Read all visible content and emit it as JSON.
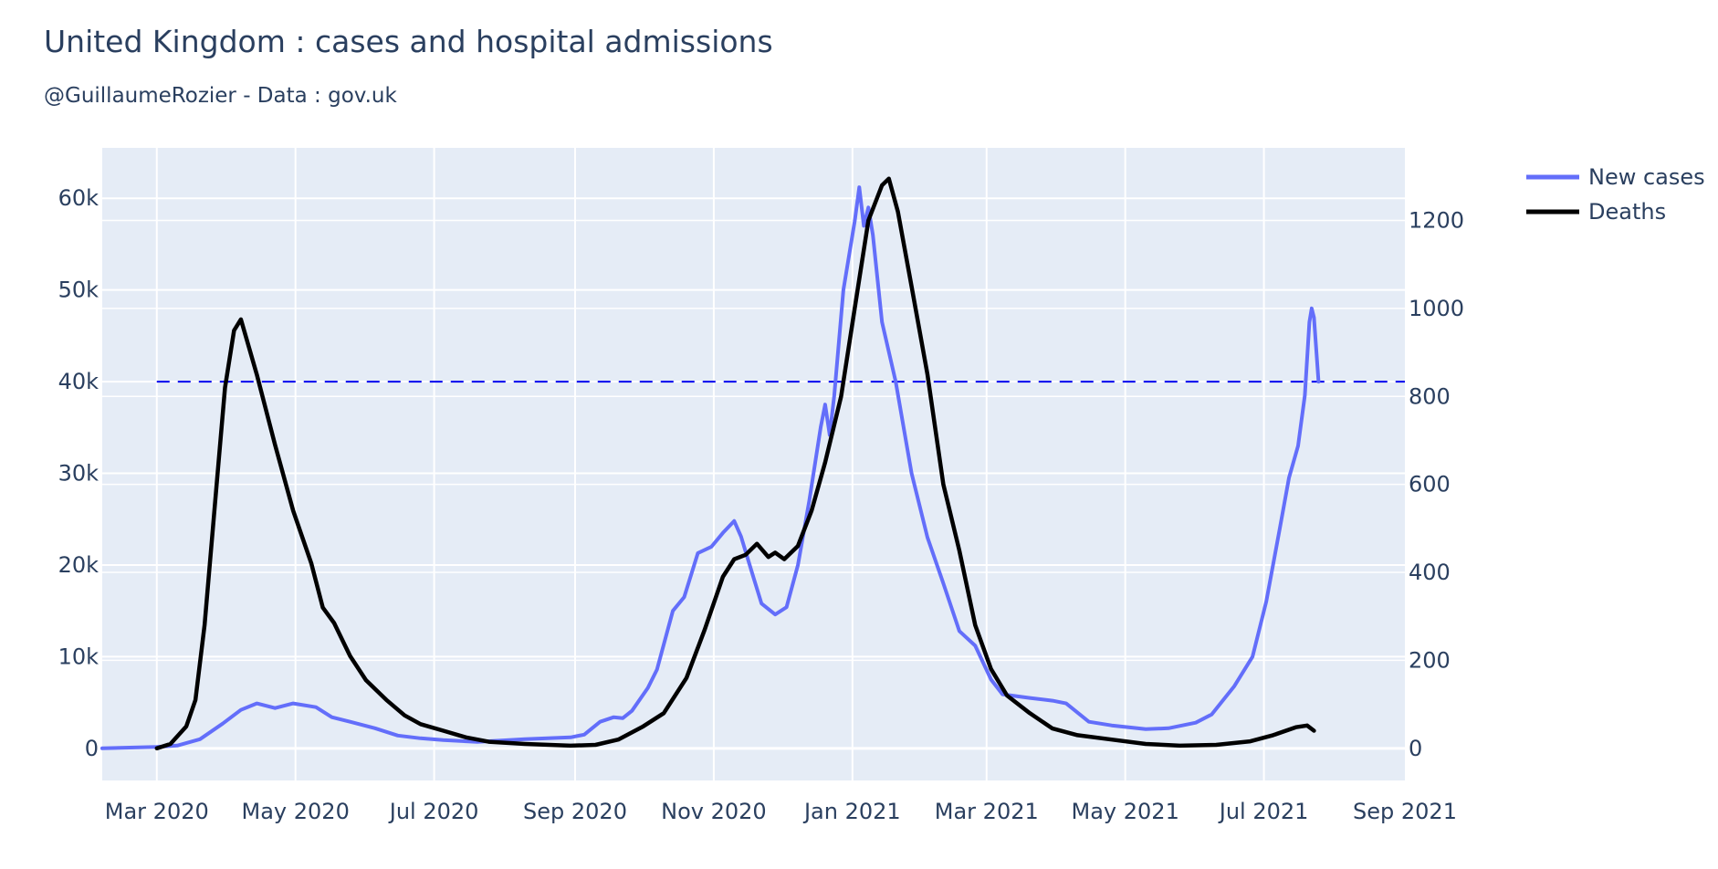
{
  "chart_data": {
    "type": "line",
    "title": "United Kingdom : cases and hospital admissions",
    "subtitle": "@GuillaumeRozier - Data : gov.uk",
    "x_ticks": [
      {
        "date": "2020-03-01",
        "label": "Mar 2020"
      },
      {
        "date": "2020-05-01",
        "label": "May 2020"
      },
      {
        "date": "2020-07-01",
        "label": "Jul 2020"
      },
      {
        "date": "2020-09-01",
        "label": "Sep 2020"
      },
      {
        "date": "2020-11-01",
        "label": "Nov 2020"
      },
      {
        "date": "2021-01-01",
        "label": "Jan 2021"
      },
      {
        "date": "2021-03-01",
        "label": "Mar 2021"
      },
      {
        "date": "2021-05-01",
        "label": "May 2021"
      },
      {
        "date": "2021-07-01",
        "label": "Jul 2021"
      },
      {
        "date": "2021-09-01",
        "label": "Sep 2021"
      }
    ],
    "x_range": [
      "2020-02-06",
      "2021-09-01"
    ],
    "y_left": {
      "range": [
        -3500,
        65500
      ],
      "ticks": [
        {
          "value": 0,
          "label": "0"
        },
        {
          "value": 10000,
          "label": "10k"
        },
        {
          "value": 20000,
          "label": "20k"
        },
        {
          "value": 30000,
          "label": "30k"
        },
        {
          "value": 40000,
          "label": "40k"
        },
        {
          "value": 50000,
          "label": "50k"
        },
        {
          "value": 60000,
          "label": "60k"
        }
      ]
    },
    "y_right": {
      "range": [
        -73,
        1365
      ],
      "ticks": [
        {
          "value": 0,
          "label": "0"
        },
        {
          "value": 200,
          "label": "200"
        },
        {
          "value": 400,
          "label": "400"
        },
        {
          "value": 600,
          "label": "600"
        },
        {
          "value": 800,
          "label": "800"
        },
        {
          "value": 1000,
          "label": "1000"
        },
        {
          "value": 1200,
          "label": "1200"
        }
      ]
    },
    "reference_line": {
      "axis": "left",
      "value": 40000,
      "style": "dashed",
      "from": "2020-03-01",
      "to": "2021-09-01"
    },
    "series": [
      {
        "name": "New cases",
        "axis": "left",
        "color": "#636efa",
        "points": [
          [
            "2020-02-06",
            0
          ],
          [
            "2020-03-01",
            150
          ],
          [
            "2020-03-10",
            300
          ],
          [
            "2020-03-20",
            1000
          ],
          [
            "2020-03-30",
            2700
          ],
          [
            "2020-04-07",
            4200
          ],
          [
            "2020-04-14",
            4900
          ],
          [
            "2020-04-22",
            4400
          ],
          [
            "2020-04-30",
            4900
          ],
          [
            "2020-05-10",
            4500
          ],
          [
            "2020-05-17",
            3400
          ],
          [
            "2020-05-25",
            2900
          ],
          [
            "2020-06-05",
            2200
          ],
          [
            "2020-06-15",
            1400
          ],
          [
            "2020-06-25",
            1100
          ],
          [
            "2020-07-05",
            900
          ],
          [
            "2020-07-20",
            700
          ],
          [
            "2020-08-10",
            1000
          ],
          [
            "2020-08-30",
            1200
          ],
          [
            "2020-09-05",
            1500
          ],
          [
            "2020-09-12",
            2900
          ],
          [
            "2020-09-18",
            3400
          ],
          [
            "2020-09-22",
            3300
          ],
          [
            "2020-09-26",
            4100
          ],
          [
            "2020-10-03",
            6600
          ],
          [
            "2020-10-07",
            8600
          ],
          [
            "2020-10-14",
            15000
          ],
          [
            "2020-10-19",
            16500
          ],
          [
            "2020-10-25",
            21300
          ],
          [
            "2020-10-31",
            22000
          ],
          [
            "2020-11-05",
            23500
          ],
          [
            "2020-11-10",
            24800
          ],
          [
            "2020-11-13",
            23100
          ],
          [
            "2020-11-18",
            19000
          ],
          [
            "2020-11-22",
            15800
          ],
          [
            "2020-11-28",
            14600
          ],
          [
            "2020-12-03",
            15400
          ],
          [
            "2020-12-08",
            20000
          ],
          [
            "2020-12-13",
            27000
          ],
          [
            "2020-12-18",
            35000
          ],
          [
            "2020-12-20",
            37500
          ],
          [
            "2020-12-22",
            34200
          ],
          [
            "2020-12-24",
            38500
          ],
          [
            "2020-12-28",
            50000
          ],
          [
            "2021-01-02",
            57500
          ],
          [
            "2021-01-04",
            61200
          ],
          [
            "2021-01-06",
            57000
          ],
          [
            "2021-01-08",
            59000
          ],
          [
            "2021-01-10",
            56000
          ],
          [
            "2021-01-14",
            46500
          ],
          [
            "2021-01-20",
            40000
          ],
          [
            "2021-01-27",
            30000
          ],
          [
            "2021-02-03",
            23000
          ],
          [
            "2021-02-10",
            18000
          ],
          [
            "2021-02-17",
            12800
          ],
          [
            "2021-02-24",
            11200
          ],
          [
            "2021-03-03",
            7500
          ],
          [
            "2021-03-08",
            5900
          ],
          [
            "2021-03-20",
            5500
          ],
          [
            "2021-03-30",
            5200
          ],
          [
            "2021-04-05",
            4900
          ],
          [
            "2021-04-15",
            2900
          ],
          [
            "2021-04-25",
            2500
          ],
          [
            "2021-05-10",
            2100
          ],
          [
            "2021-05-20",
            2200
          ],
          [
            "2021-06-01",
            2800
          ],
          [
            "2021-06-08",
            3700
          ],
          [
            "2021-06-18",
            6800
          ],
          [
            "2021-06-26",
            10000
          ],
          [
            "2021-07-02",
            16000
          ],
          [
            "2021-07-08",
            24000
          ],
          [
            "2021-07-12",
            29500
          ],
          [
            "2021-07-16",
            33000
          ],
          [
            "2021-07-19",
            38500
          ],
          [
            "2021-07-21",
            46500
          ],
          [
            "2021-07-22",
            48000
          ],
          [
            "2021-07-23",
            47000
          ],
          [
            "2021-07-25",
            40000
          ]
        ]
      },
      {
        "name": "Deaths",
        "axis": "right",
        "color": "#000000",
        "points": [
          [
            "2020-03-01",
            0
          ],
          [
            "2020-03-07",
            10
          ],
          [
            "2020-03-14",
            50
          ],
          [
            "2020-03-18",
            110
          ],
          [
            "2020-03-22",
            280
          ],
          [
            "2020-03-27",
            580
          ],
          [
            "2020-03-31",
            820
          ],
          [
            "2020-04-04",
            950
          ],
          [
            "2020-04-07",
            975
          ],
          [
            "2020-04-14",
            850
          ],
          [
            "2020-04-22",
            690
          ],
          [
            "2020-04-30",
            540
          ],
          [
            "2020-05-08",
            420
          ],
          [
            "2020-05-13",
            320
          ],
          [
            "2020-05-18",
            285
          ],
          [
            "2020-05-25",
            210
          ],
          [
            "2020-06-01",
            155
          ],
          [
            "2020-06-10",
            110
          ],
          [
            "2020-06-18",
            75
          ],
          [
            "2020-06-25",
            55
          ],
          [
            "2020-07-05",
            40
          ],
          [
            "2020-07-15",
            25
          ],
          [
            "2020-07-25",
            15
          ],
          [
            "2020-08-10",
            10
          ],
          [
            "2020-08-30",
            6
          ],
          [
            "2020-09-10",
            8
          ],
          [
            "2020-09-20",
            20
          ],
          [
            "2020-10-01",
            50
          ],
          [
            "2020-10-10",
            80
          ],
          [
            "2020-10-20",
            160
          ],
          [
            "2020-10-28",
            270
          ],
          [
            "2020-11-05",
            390
          ],
          [
            "2020-11-10",
            430
          ],
          [
            "2020-11-15",
            440
          ],
          [
            "2020-11-20",
            465
          ],
          [
            "2020-11-25",
            435
          ],
          [
            "2020-11-28",
            445
          ],
          [
            "2020-12-02",
            430
          ],
          [
            "2020-12-08",
            460
          ],
          [
            "2020-12-14",
            540
          ],
          [
            "2020-12-20",
            650
          ],
          [
            "2020-12-27",
            800
          ],
          [
            "2021-01-02",
            1000
          ],
          [
            "2021-01-08",
            1200
          ],
          [
            "2021-01-14",
            1280
          ],
          [
            "2021-01-17",
            1295
          ],
          [
            "2021-01-21",
            1220
          ],
          [
            "2021-01-27",
            1050
          ],
          [
            "2021-02-03",
            850
          ],
          [
            "2021-02-10",
            600
          ],
          [
            "2021-02-17",
            450
          ],
          [
            "2021-02-24",
            280
          ],
          [
            "2021-03-03",
            180
          ],
          [
            "2021-03-10",
            120
          ],
          [
            "2021-03-20",
            80
          ],
          [
            "2021-03-30",
            45
          ],
          [
            "2021-04-10",
            30
          ],
          [
            "2021-04-25",
            20
          ],
          [
            "2021-05-10",
            10
          ],
          [
            "2021-05-25",
            6
          ],
          [
            "2021-06-10",
            8
          ],
          [
            "2021-06-25",
            16
          ],
          [
            "2021-07-05",
            30
          ],
          [
            "2021-07-15",
            48
          ],
          [
            "2021-07-20",
            52
          ],
          [
            "2021-07-23",
            40
          ]
        ]
      }
    ],
    "legend": {
      "position": "top-right",
      "entries": [
        "New cases",
        "Deaths"
      ]
    }
  }
}
